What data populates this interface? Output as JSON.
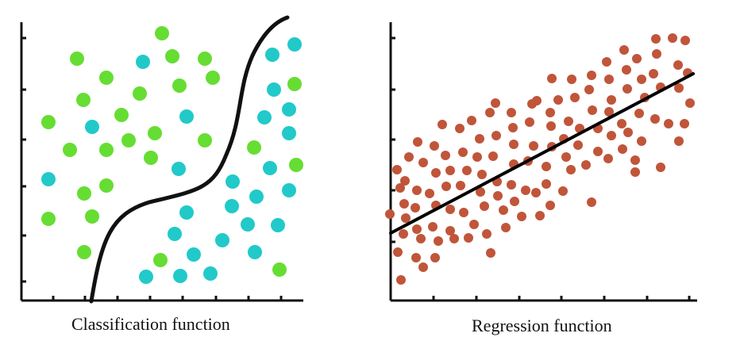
{
  "panels": [
    {
      "caption": "Classification function",
      "class_a_color": "#66dd33",
      "class_b_color": "#22c9c9",
      "class_a_points": [
        [
          204,
          42
        ],
        [
          97,
          74
        ],
        [
          217,
          71
        ],
        [
          258,
          74
        ],
        [
          134,
          98
        ],
        [
          268,
          98
        ],
        [
          226,
          108
        ],
        [
          105,
          126
        ],
        [
          176,
          118
        ],
        [
          153,
          145
        ],
        [
          61,
          154
        ],
        [
          195,
          168
        ],
        [
          162,
          177
        ],
        [
          134,
          189
        ],
        [
          88,
          189
        ],
        [
          258,
          177
        ],
        [
          190,
          199
        ],
        [
          320,
          186
        ],
        [
          373,
          208
        ],
        [
          106,
          244
        ],
        [
          134,
          234
        ],
        [
          61,
          276
        ],
        [
          116,
          273
        ],
        [
          106,
          318
        ],
        [
          202,
          328
        ],
        [
          352,
          340
        ],
        [
          371,
          106
        ]
      ],
      "class_b_points": [
        [
          180,
          78
        ],
        [
          343,
          69
        ],
        [
          371,
          56
        ],
        [
          116,
          160
        ],
        [
          235,
          147
        ],
        [
          345,
          113
        ],
        [
          333,
          148
        ],
        [
          364,
          138
        ],
        [
          364,
          168
        ],
        [
          225,
          213
        ],
        [
          340,
          212
        ],
        [
          61,
          226
        ],
        [
          293,
          229
        ],
        [
          323,
          248
        ],
        [
          364,
          240
        ],
        [
          235,
          268
        ],
        [
          292,
          260
        ],
        [
          220,
          295
        ],
        [
          280,
          303
        ],
        [
          312,
          283
        ],
        [
          350,
          284
        ],
        [
          244,
          321
        ],
        [
          321,
          318
        ],
        [
          184,
          349
        ],
        [
          227,
          348
        ],
        [
          265,
          345
        ]
      ],
      "boundary": "classification boundary"
    },
    {
      "caption": "Regression function",
      "point_color": "#c0553a",
      "line_color": "#000000",
      "points": [
        [
          826,
          49
        ],
        [
          847,
          48
        ],
        [
          863,
          51
        ],
        [
          786,
          63
        ],
        [
          802,
          74
        ],
        [
          827,
          68
        ],
        [
          764,
          78
        ],
        [
          745,
          95
        ],
        [
          767,
          100
        ],
        [
          789,
          88
        ],
        [
          808,
          100
        ],
        [
          823,
          93
        ],
        [
          854,
          82
        ],
        [
          866,
          92
        ],
        [
          695,
          99
        ],
        [
          720,
          100
        ],
        [
          742,
          113
        ],
        [
          770,
          126
        ],
        [
          790,
          112
        ],
        [
          812,
          123
        ],
        [
          832,
          110
        ],
        [
          855,
          111
        ],
        [
          869,
          130
        ],
        [
          676,
          127
        ],
        [
          703,
          126
        ],
        [
          724,
          123
        ],
        [
          746,
          139
        ],
        [
          767,
          141
        ],
        [
          783,
          156
        ],
        [
          805,
          143
        ],
        [
          825,
          150
        ],
        [
          842,
          156
        ],
        [
          862,
          156
        ],
        [
          624,
          130
        ],
        [
          644,
          142
        ],
        [
          670,
          131
        ],
        [
          693,
          142
        ],
        [
          716,
          153
        ],
        [
          730,
          162
        ],
        [
          753,
          162
        ],
        [
          770,
          171
        ],
        [
          791,
          167
        ],
        [
          808,
          178
        ],
        [
          855,
          178
        ],
        [
          594,
          152
        ],
        [
          617,
          142
        ],
        [
          646,
          161
        ],
        [
          667,
          154
        ],
        [
          694,
          159
        ],
        [
          710,
          175
        ],
        [
          728,
          183
        ],
        [
          753,
          191
        ],
        [
          766,
          200
        ],
        [
          784,
          188
        ],
        [
          800,
          202
        ],
        [
          832,
          211
        ],
        [
          557,
          157
        ],
        [
          579,
          162
        ],
        [
          604,
          175
        ],
        [
          625,
          171
        ],
        [
          647,
          182
        ],
        [
          672,
          184
        ],
        [
          695,
          185
        ],
        [
          713,
          198
        ],
        [
          738,
          208
        ],
        [
          800,
          217
        ],
        [
          526,
          179
        ],
        [
          547,
          184
        ],
        [
          561,
          196
        ],
        [
          583,
          192
        ],
        [
          601,
          198
        ],
        [
          621,
          197
        ],
        [
          647,
          207
        ],
        [
          665,
          203
        ],
        [
          688,
          210
        ],
        [
          719,
          214
        ],
        [
          515,
          198
        ],
        [
          533,
          205
        ],
        [
          549,
          218
        ],
        [
          567,
          215
        ],
        [
          588,
          215
        ],
        [
          607,
          220
        ],
        [
          626,
          229
        ],
        [
          644,
          233
        ],
        [
          662,
          240
        ],
        [
          688,
          232
        ],
        [
          709,
          241
        ],
        [
          500,
          214
        ],
        [
          510,
          228
        ],
        [
          525,
          240
        ],
        [
          541,
          244
        ],
        [
          562,
          235
        ],
        [
          580,
          234
        ],
        [
          605,
          242
        ],
        [
          627,
          247
        ],
        [
          648,
          254
        ],
        [
          675,
          243
        ],
        [
          693,
          259
        ],
        [
          745,
          255
        ],
        [
          504,
          237
        ],
        [
          509,
          257
        ],
        [
          523,
          262
        ],
        [
          549,
          259
        ],
        [
          567,
          264
        ],
        [
          584,
          268
        ],
        [
          610,
          260
        ],
        [
          634,
          265
        ],
        [
          657,
          273
        ],
        [
          680,
          272
        ],
        [
          491,
          270
        ],
        [
          511,
          275
        ],
        [
          525,
          289
        ],
        [
          545,
          286
        ],
        [
          567,
          291
        ],
        [
          597,
          283
        ],
        [
          613,
          295
        ],
        [
          637,
          287
        ],
        [
          508,
          295
        ],
        [
          530,
          301
        ],
        [
          552,
          304
        ],
        [
          572,
          301
        ],
        [
          590,
          300
        ],
        [
          501,
          318
        ],
        [
          524,
          325
        ],
        [
          548,
          325
        ],
        [
          618,
          319
        ],
        [
          533,
          337
        ],
        [
          505,
          353
        ]
      ]
    }
  ]
}
